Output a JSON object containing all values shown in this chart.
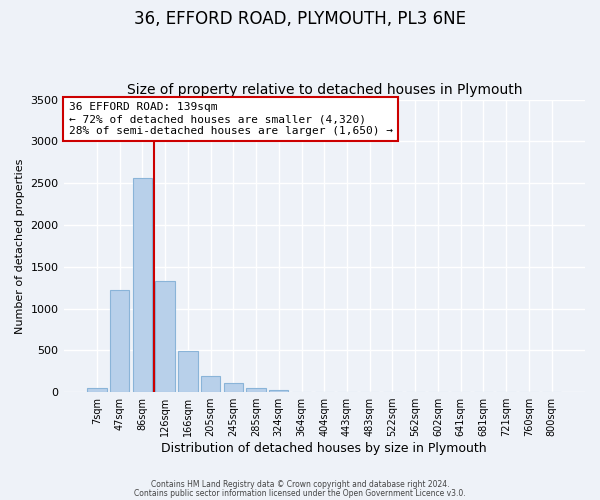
{
  "title": "36, EFFORD ROAD, PLYMOUTH, PL3 6NE",
  "subtitle": "Size of property relative to detached houses in Plymouth",
  "xlabel": "Distribution of detached houses by size in Plymouth",
  "ylabel": "Number of detached properties",
  "bar_labels": [
    "7sqm",
    "47sqm",
    "86sqm",
    "126sqm",
    "166sqm",
    "205sqm",
    "245sqm",
    "285sqm",
    "324sqm",
    "364sqm",
    "404sqm",
    "443sqm",
    "483sqm",
    "522sqm",
    "562sqm",
    "602sqm",
    "641sqm",
    "681sqm",
    "721sqm",
    "760sqm",
    "800sqm"
  ],
  "bar_values": [
    50,
    1220,
    2560,
    1330,
    490,
    190,
    110,
    45,
    20,
    0,
    0,
    0,
    0,
    0,
    0,
    0,
    0,
    0,
    0,
    0,
    0
  ],
  "bar_color": "#b8d0ea",
  "bar_edge_color": "#8ab4d8",
  "marker_label": "36 EFFORD ROAD: 139sqm",
  "annotation_line1": "← 72% of detached houses are smaller (4,320)",
  "annotation_line2": "28% of semi-detached houses are larger (1,650) →",
  "vline_color": "#cc0000",
  "box_edge_color": "#cc0000",
  "ylim": [
    0,
    3500
  ],
  "footnote1": "Contains HM Land Registry data © Crown copyright and database right 2024.",
  "footnote2": "Contains public sector information licensed under the Open Government Licence v3.0.",
  "background_color": "#eef2f8",
  "grid_color": "#ffffff",
  "title_fontsize": 12,
  "subtitle_fontsize": 10,
  "vline_x_index": 2.5
}
